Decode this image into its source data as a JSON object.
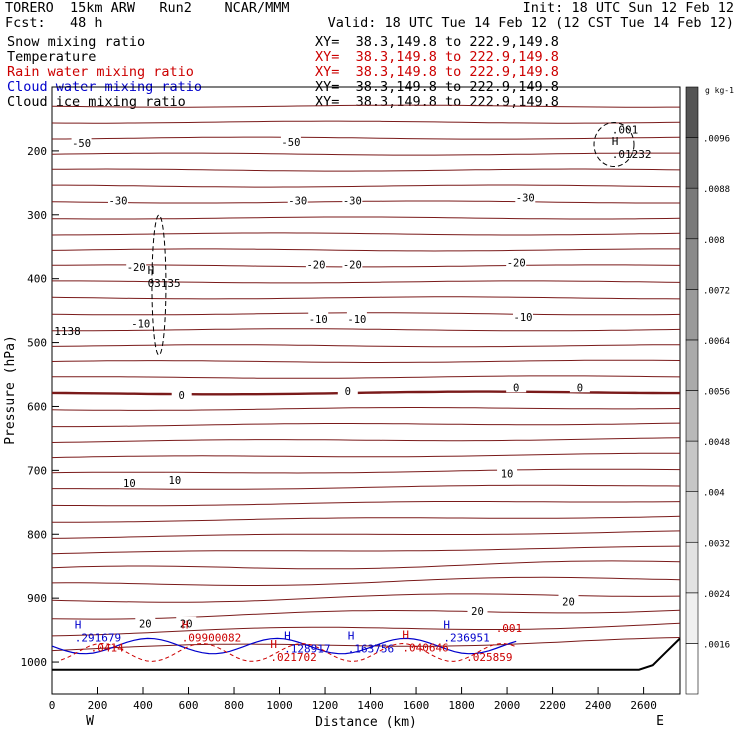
{
  "header": {
    "line1_left": "TORERO  15km ARW   Run2    NCAR/MMM",
    "line1_right": "Init: 18 UTC Sun 12 Feb 12",
    "line2_left": "Fcst:   48 h",
    "line2_right": "Valid: 18 UTC Tue 14 Feb 12 (12 CST Tue 14 Feb 12)"
  },
  "fields": [
    {
      "name": "Snow mixing ratio",
      "xy": "XY=  38.3,149.8 to 222.9,149.8",
      "color": "#000000",
      "xy_color": "#000000"
    },
    {
      "name": "Temperature",
      "xy": "XY=  38.3,149.8 to 222.9,149.8",
      "color": "#000000",
      "xy_color": "#cc0000"
    },
    {
      "name": "Rain water mixing ratio",
      "xy": "XY=  38.3,149.8 to 222.9,149.8",
      "color": "#cc0000",
      "xy_color": "#cc0000"
    },
    {
      "name": "Cloud water mixing ratio",
      "xy": "XY=  38.3,149.8 to 222.9,149.8",
      "color": "#0000cc",
      "xy_color": "#000000"
    },
    {
      "name": "Cloud ice mixing ratio",
      "xy": "XY=  38.3,149.8 to 222.9,149.8",
      "color": "#000000",
      "xy_color": "#000000"
    }
  ],
  "chart_data": {
    "type": "contour",
    "xlabel": "Distance (km)",
    "ylabel": "Pressure (hPa)",
    "x_ticks": [
      0,
      200,
      400,
      600,
      800,
      1000,
      1200,
      1400,
      1600,
      1800,
      2000,
      2200,
      2400,
      2600
    ],
    "y_ticks": [
      200,
      300,
      400,
      500,
      600,
      700,
      800,
      900,
      1000
    ],
    "xlim": [
      0,
      2760
    ],
    "ylim": [
      1050,
      100
    ],
    "endpoint_labels": {
      "left": "W",
      "right": "E"
    },
    "colorbar": {
      "unit": "g kg-1",
      "ticks": [
        ".0016",
        ".0024",
        ".0032",
        ".004",
        ".0048",
        ".0056",
        ".0064",
        ".0072",
        ".008",
        ".0088",
        ".0096"
      ],
      "colors": [
        "#ffffff",
        "#f0f0f0",
        "#e2e2e2",
        "#d4d4d4",
        "#c6c6c6",
        "#b8b8b8",
        "#aaaaaa",
        "#9a9a9a",
        "#8a8a8a",
        "#7a7a7a",
        "#686868",
        "#555555"
      ]
    },
    "temperature_isotherms_C": [
      -50,
      -30,
      -20,
      -10,
      0,
      10,
      20
    ],
    "temperature_labels": [
      {
        "value": "-50",
        "x": 130,
        "p": 188
      },
      {
        "value": "-50",
        "x": 1050,
        "p": 186
      },
      {
        "value": "-30",
        "x": 290,
        "p": 278
      },
      {
        "value": "-30",
        "x": 1080,
        "p": 278
      },
      {
        "value": "-30",
        "x": 1320,
        "p": 278
      },
      {
        "value": "-30",
        "x": 2080,
        "p": 273
      },
      {
        "value": "-20",
        "x": 370,
        "p": 382
      },
      {
        "value": "-20",
        "x": 1160,
        "p": 378
      },
      {
        "value": "-20",
        "x": 1320,
        "p": 378
      },
      {
        "value": "-20",
        "x": 2040,
        "p": 375
      },
      {
        "value": "-10",
        "x": 390,
        "p": 470
      },
      {
        "value": "-10",
        "x": 1170,
        "p": 463
      },
      {
        "value": "-10",
        "x": 1340,
        "p": 463
      },
      {
        "value": "-10",
        "x": 2070,
        "p": 460
      },
      {
        "value": "0",
        "x": 570,
        "p": 582
      },
      {
        "value": "0",
        "x": 1300,
        "p": 576
      },
      {
        "value": "0",
        "x": 2040,
        "p": 570
      },
      {
        "value": "0",
        "x": 2320,
        "p": 570
      },
      {
        "value": "10",
        "x": 340,
        "p": 720
      },
      {
        "value": "10",
        "x": 540,
        "p": 715
      },
      {
        "value": "10",
        "x": 2000,
        "p": 705
      },
      {
        "value": "20",
        "x": 410,
        "p": 940
      },
      {
        "value": "20",
        "x": 590,
        "p": 940
      },
      {
        "value": "20",
        "x": 1870,
        "p": 920
      },
      {
        "value": "20",
        "x": 2270,
        "p": 905
      }
    ],
    "extrema_labels": [
      {
        "kind": "H",
        "value": "03135",
        "x": 420,
        "p": 410,
        "color": "#000000"
      },
      {
        "kind": "",
        "value": "1138",
        "x": 10,
        "p": 485,
        "color": "#000000"
      },
      {
        "kind": "",
        "value": ".001",
        "x": 2460,
        "p": 170,
        "color": "#000000"
      },
      {
        "kind": "H",
        "value": ".01232",
        "x": 2460,
        "p": 208,
        "color": "#000000"
      },
      {
        "kind": "H",
        "value": ".291679",
        "x": 100,
        "p": 965,
        "color": "#0000cc"
      },
      {
        "kind": "H",
        "value": ".128917",
        "x": 1020,
        "p": 982,
        "color": "#0000cc"
      },
      {
        "kind": "H",
        "value": ".163756",
        "x": 1300,
        "p": 982,
        "color": "#0000cc"
      },
      {
        "kind": "H",
        "value": ".236951",
        "x": 1720,
        "p": 965,
        "color": "#0000cc"
      },
      {
        "kind": "",
        "value": ".0414",
        "x": 170,
        "p": 980,
        "color": "#cc0000"
      },
      {
        "kind": "H",
        "value": ".09900082",
        "x": 570,
        "p": 965,
        "color": "#cc0000"
      },
      {
        "kind": "H",
        "value": ".021702",
        "x": 960,
        "p": 995,
        "color": "#cc0000"
      },
      {
        "kind": "H",
        "value": ".040646",
        "x": 1540,
        "p": 980,
        "color": "#cc0000"
      },
      {
        "kind": "",
        "value": ".025859",
        "x": 1820,
        "p": 995,
        "color": "#cc0000"
      },
      {
        "kind": "",
        "value": ".001",
        "x": 1950,
        "p": 950,
        "color": "#cc0000"
      }
    ]
  }
}
